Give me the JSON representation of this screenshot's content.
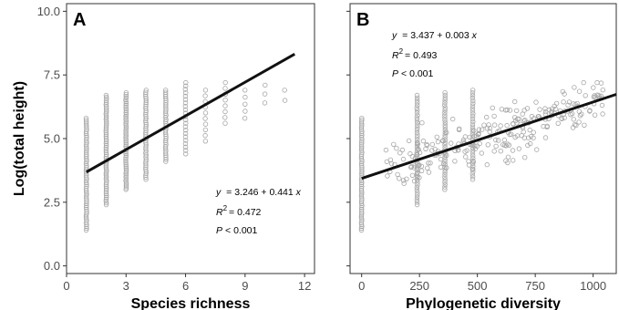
{
  "chart_data": [
    {
      "type": "scatter",
      "panel": "A",
      "xlabel": "Species richness",
      "ylabel": "Log(total height)",
      "xlim": [
        0,
        12.5
      ],
      "ylim": [
        -0.3,
        10.3
      ],
      "xticks": [
        0,
        3,
        6,
        9,
        12
      ],
      "yticks": [
        0.0,
        2.5,
        5.0,
        7.5,
        10.0
      ],
      "ytick_labels": [
        "0.0",
        "2.5",
        "5.0",
        "7.5",
        "10.0"
      ],
      "grid": false,
      "point_color": "#a6a6a6",
      "line_color": "#111111",
      "fit_line": {
        "intercept": 3.246,
        "slope": 0.441,
        "x_range": [
          1,
          11.5
        ]
      },
      "annotation": {
        "eq_var": "y",
        "eq_text": "= 3.246 + 0.441",
        "eq_x": "x",
        "r2_text": "= 0.472",
        "p_text": "< 0.001"
      },
      "point_groups": [
        {
          "x": 1,
          "y_min": 1.4,
          "y_max": 5.8,
          "count": 60
        },
        {
          "x": 2,
          "y_min": 2.4,
          "y_max": 6.7,
          "count": 60
        },
        {
          "x": 3,
          "y_min": 3.0,
          "y_max": 6.8,
          "count": 55
        },
        {
          "x": 4,
          "y_min": 3.4,
          "y_max": 6.9,
          "count": 45
        },
        {
          "x": 5,
          "y_min": 4.1,
          "y_max": 6.9,
          "count": 35
        },
        {
          "x": 6,
          "y_min": 4.4,
          "y_max": 7.2,
          "count": 22
        },
        {
          "x": 7,
          "y_min": 4.9,
          "y_max": 6.9,
          "count": 10
        },
        {
          "x": 8,
          "y_min": 5.6,
          "y_max": 7.2,
          "count": 8
        },
        {
          "x": 9,
          "y_min": 5.8,
          "y_max": 6.9,
          "count": 5
        },
        {
          "x": 10,
          "y_min": 6.4,
          "y_max": 7.1,
          "count": 3
        },
        {
          "x": 11,
          "y_min": 6.5,
          "y_max": 6.9,
          "count": 2
        }
      ]
    },
    {
      "type": "scatter",
      "panel": "B",
      "xlabel": "Phylogenetic diversity",
      "ylabel": "",
      "xlim": [
        -50,
        1100
      ],
      "ylim": [
        -0.3,
        10.3
      ],
      "xticks": [
        0,
        250,
        500,
        750,
        1000
      ],
      "yticks": [
        0.0,
        2.5,
        5.0,
        7.5,
        10.0
      ],
      "grid": false,
      "point_color": "#a6a6a6",
      "line_color": "#111111",
      "fit_line": {
        "intercept": 3.437,
        "slope": 0.003,
        "x_range": [
          0,
          1100
        ]
      },
      "annotation": {
        "eq_var": "y",
        "eq_text": "= 3.437 + 0.003",
        "eq_x": "x",
        "r2_text": "= 0.493",
        "p_text": "< 0.001"
      },
      "point_groups": [
        {
          "x": 0,
          "y_min": 1.4,
          "y_max": 5.8,
          "count": 60
        },
        {
          "x": 240,
          "y_min": 2.4,
          "y_max": 6.7,
          "count": 45
        },
        {
          "x": 360,
          "y_min": 3.0,
          "y_max": 6.8,
          "count": 40
        },
        {
          "x": 480,
          "y_min": 3.4,
          "y_max": 6.9,
          "count": 35
        }
      ],
      "scatter_cloud": {
        "x_min": 100,
        "x_max": 1050,
        "y_min": 3.2,
        "y_max": 7.2,
        "count": 260
      }
    }
  ]
}
